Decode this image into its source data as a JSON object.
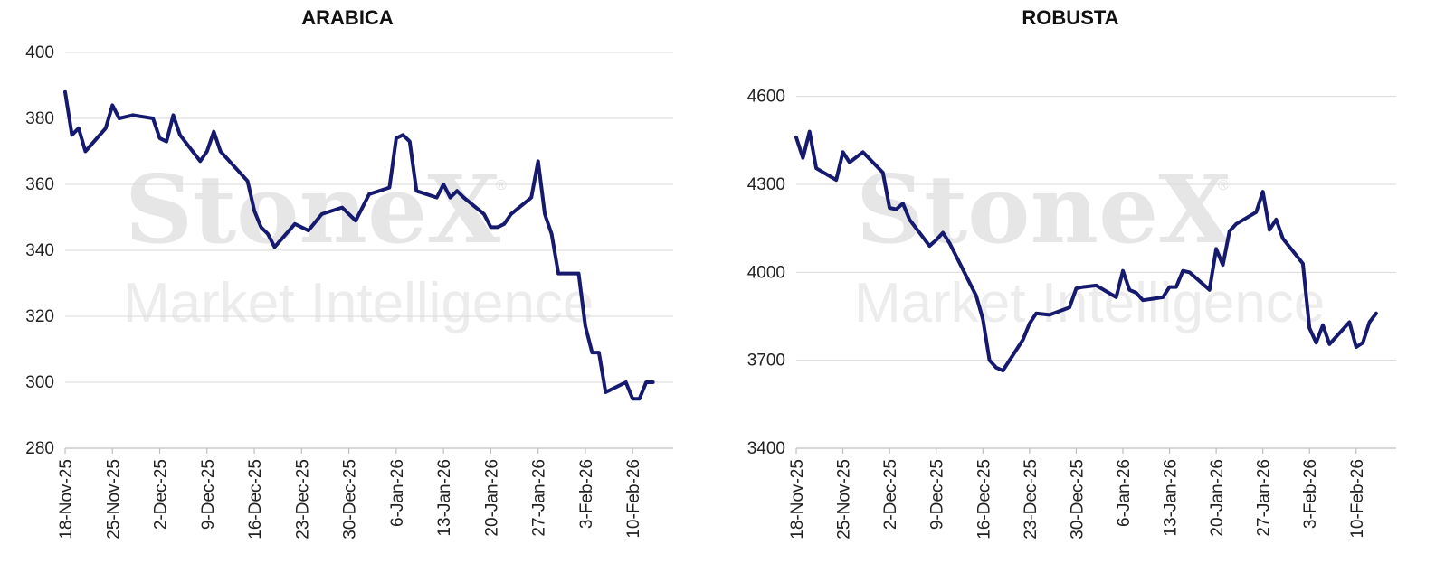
{
  "watermark": {
    "brand": "StoneX",
    "registered": "®",
    "subtitle": "Market Intelligence"
  },
  "colors": {
    "series": "#151a6e",
    "grid": "#d9d9d9"
  },
  "chart_data": [
    {
      "type": "line",
      "title": "ARABICA",
      "ylim": [
        280,
        400
      ],
      "yticks": [
        280,
        300,
        320,
        340,
        360,
        380,
        400
      ],
      "ytick_labels": [
        "280",
        "300",
        "320",
        "340",
        "360",
        "380",
        "400"
      ],
      "xlim": [
        "2025-11-18",
        "2026-02-16"
      ],
      "xticks": [
        "2025-11-18",
        "2025-11-25",
        "2025-12-02",
        "2025-12-09",
        "2025-12-16",
        "2025-12-23",
        "2025-12-30",
        "2026-01-06",
        "2026-01-13",
        "2026-01-20",
        "2026-01-27",
        "2026-02-03",
        "2026-02-10"
      ],
      "xtick_labels": [
        "18-Nov-25",
        "25-Nov-25",
        "2-Dec-25",
        "9-Dec-25",
        "16-Dec-25",
        "23-Dec-25",
        "30-Dec-25",
        "6-Jan-26",
        "13-Jan-26",
        "20-Jan-26",
        "27-Jan-26",
        "3-Feb-26",
        "10-Feb-26"
      ],
      "grid": true,
      "series": [
        {
          "x": [
            "2025-11-18",
            "2025-11-19",
            "2025-11-20",
            "2025-11-21",
            "2025-11-24",
            "2025-11-25",
            "2025-11-26",
            "2025-11-28",
            "2025-12-01",
            "2025-12-02",
            "2025-12-03",
            "2025-12-04",
            "2025-12-05",
            "2025-12-08",
            "2025-12-09",
            "2025-12-10",
            "2025-12-11",
            "2025-12-15",
            "2025-12-16",
            "2025-12-17",
            "2025-12-18",
            "2025-12-19",
            "2025-12-22",
            "2025-12-23",
            "2025-12-24",
            "2025-12-26",
            "2025-12-29",
            "2025-12-30",
            "2025-12-31",
            "2026-01-02",
            "2026-01-05",
            "2026-01-06",
            "2026-01-07",
            "2026-01-08",
            "2026-01-09",
            "2026-01-12",
            "2026-01-13",
            "2026-01-14",
            "2026-01-15",
            "2026-01-16",
            "2026-01-19",
            "2026-01-20",
            "2026-01-21",
            "2026-01-22",
            "2026-01-23",
            "2026-01-26",
            "2026-01-27",
            "2026-01-28",
            "2026-01-29",
            "2026-01-30",
            "2026-02-02",
            "2026-02-03",
            "2026-02-04",
            "2026-02-05",
            "2026-02-06",
            "2026-02-09",
            "2026-02-10",
            "2026-02-11",
            "2026-02-12",
            "2026-02-13"
          ],
          "values": [
            388,
            375,
            377,
            370,
            377,
            384,
            380,
            381,
            380,
            374,
            373,
            381,
            375,
            367,
            370,
            376,
            370,
            361,
            352,
            347,
            345,
            341,
            348,
            347,
            346,
            351,
            353,
            351,
            349,
            357,
            359,
            374,
            375,
            373,
            358,
            356,
            360,
            356,
            358,
            356,
            351,
            347,
            347,
            348,
            351,
            356,
            367,
            351,
            345,
            333,
            333,
            317,
            309,
            309,
            297,
            300,
            295,
            295,
            300,
            300
          ]
        }
      ]
    },
    {
      "type": "line",
      "title": "ROBUSTA",
      "ylim": [
        3400,
        4750
      ],
      "yticks": [
        3400,
        3700,
        4000,
        4300,
        4600
      ],
      "ytick_labels": [
        "3400",
        "3700",
        "4000",
        "4300",
        "4600"
      ],
      "xlim": [
        "2025-11-18",
        "2026-02-16"
      ],
      "xticks": [
        "2025-11-18",
        "2025-11-25",
        "2025-12-02",
        "2025-12-09",
        "2025-12-16",
        "2025-12-23",
        "2025-12-30",
        "2026-01-06",
        "2026-01-13",
        "2026-01-20",
        "2026-01-27",
        "2026-02-03",
        "2026-02-10"
      ],
      "xtick_labels": [
        "18-Nov-25",
        "25-Nov-25",
        "2-Dec-25",
        "9-Dec-25",
        "16-Dec-25",
        "23-Dec-25",
        "30-Dec-25",
        "6-Jan-26",
        "13-Jan-26",
        "20-Jan-26",
        "27-Jan-26",
        "3-Feb-26",
        "10-Feb-26"
      ],
      "grid": true,
      "series": [
        {
          "x": [
            "2025-11-18",
            "2025-11-19",
            "2025-11-20",
            "2025-11-21",
            "2025-11-24",
            "2025-11-25",
            "2025-11-26",
            "2025-11-28",
            "2025-12-01",
            "2025-12-02",
            "2025-12-03",
            "2025-12-04",
            "2025-12-05",
            "2025-12-08",
            "2025-12-09",
            "2025-12-10",
            "2025-12-11",
            "2025-12-15",
            "2025-12-16",
            "2025-12-17",
            "2025-12-18",
            "2025-12-19",
            "2025-12-22",
            "2025-12-23",
            "2025-12-24",
            "2025-12-26",
            "2025-12-29",
            "2025-12-30",
            "2025-12-31",
            "2026-01-02",
            "2026-01-05",
            "2026-01-06",
            "2026-01-07",
            "2026-01-08",
            "2026-01-09",
            "2026-01-12",
            "2026-01-13",
            "2026-01-14",
            "2026-01-15",
            "2026-01-16",
            "2026-01-19",
            "2026-01-20",
            "2026-01-21",
            "2026-01-22",
            "2026-01-23",
            "2026-01-26",
            "2026-01-27",
            "2026-01-28",
            "2026-01-29",
            "2026-01-30",
            "2026-02-02",
            "2026-02-03",
            "2026-02-04",
            "2026-02-05",
            "2026-02-06",
            "2026-02-09",
            "2026-02-10",
            "2026-02-11",
            "2026-02-12",
            "2026-02-13"
          ],
          "values": [
            4460,
            4390,
            4480,
            4355,
            4315,
            4410,
            4375,
            4410,
            4340,
            4220,
            4215,
            4235,
            4180,
            4090,
            4110,
            4135,
            4100,
            3920,
            3840,
            3700,
            3675,
            3665,
            3770,
            3825,
            3860,
            3855,
            3880,
            3945,
            3950,
            3955,
            3915,
            4005,
            3940,
            3930,
            3905,
            3915,
            3950,
            3950,
            4005,
            4000,
            3940,
            4080,
            4025,
            4140,
            4165,
            4205,
            4275,
            4145,
            4180,
            4115,
            4030,
            3810,
            3760,
            3820,
            3755,
            3830,
            3745,
            3760,
            3830,
            3860
          ]
        }
      ]
    }
  ]
}
